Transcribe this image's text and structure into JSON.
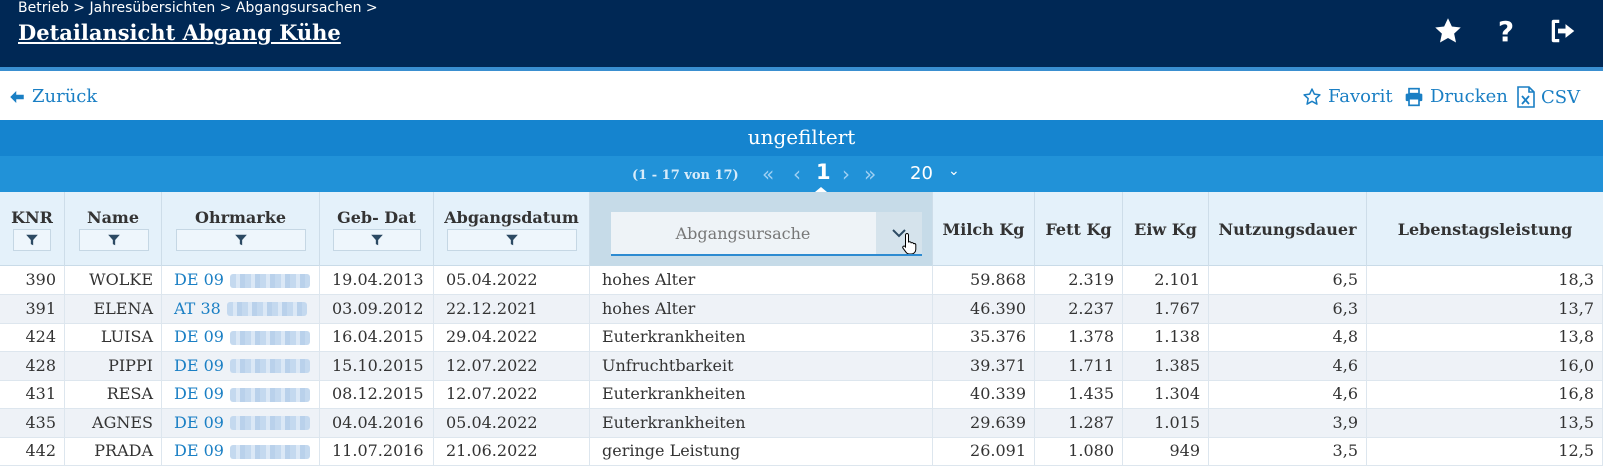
{
  "header": {
    "breadcrumb": "Betrieb > Jahresübersichten > Abgangsursachen >",
    "title": "Detailansicht Abgang Kühe",
    "help_label": "?"
  },
  "actions": {
    "back_label": "Zurück",
    "favorite_label": "Favorit",
    "print_label": "Drucken",
    "csv_label": "CSV"
  },
  "filter": {
    "status": "ungefiltert"
  },
  "pager": {
    "info": "(1 - 17 von 17)",
    "current_page": "1",
    "page_size": "20"
  },
  "table": {
    "columns": {
      "knr": "KNR",
      "name": "Name",
      "ohrmarke": "Ohrmarke",
      "gebdat": "Geb- Dat",
      "abgangsdatum": "Abgangsdatum",
      "abgangsursache_placeholder": "Abgangsursache",
      "milch": "Milch Kg",
      "fett": "Fett Kg",
      "eiw": "Eiw Kg",
      "nutzungsdauer": "Nutzungsdauer",
      "lebenstagsleistung": "Lebenstagsleistung"
    },
    "rows": [
      {
        "knr": "390",
        "name": "WOLKE",
        "ohrmarke": "DE 09",
        "gebdat": "19.04.2013",
        "abgangsdatum": "05.04.2022",
        "ursache": "hohes Alter",
        "milch": "59.868",
        "fett": "2.319",
        "eiw": "2.101",
        "nutzung": "6,5",
        "lebens": "18,3"
      },
      {
        "knr": "391",
        "name": "ELENA",
        "ohrmarke": "AT 38",
        "gebdat": "03.09.2012",
        "abgangsdatum": "22.12.2021",
        "ursache": "hohes Alter",
        "milch": "46.390",
        "fett": "2.237",
        "eiw": "1.767",
        "nutzung": "6,3",
        "lebens": "13,7"
      },
      {
        "knr": "424",
        "name": "LUISA",
        "ohrmarke": "DE 09",
        "gebdat": "16.04.2015",
        "abgangsdatum": "29.04.2022",
        "ursache": "Euterkrankheiten",
        "milch": "35.376",
        "fett": "1.378",
        "eiw": "1.138",
        "nutzung": "4,8",
        "lebens": "13,8"
      },
      {
        "knr": "428",
        "name": "PIPPI",
        "ohrmarke": "DE 09",
        "gebdat": "15.10.2015",
        "abgangsdatum": "12.07.2022",
        "ursache": "Unfruchtbarkeit",
        "milch": "39.371",
        "fett": "1.711",
        "eiw": "1.385",
        "nutzung": "4,6",
        "lebens": "16,0"
      },
      {
        "knr": "431",
        "name": "RESA",
        "ohrmarke": "DE 09",
        "gebdat": "08.12.2015",
        "abgangsdatum": "12.07.2022",
        "ursache": "Euterkrankheiten",
        "milch": "40.339",
        "fett": "1.435",
        "eiw": "1.304",
        "nutzung": "4,6",
        "lebens": "16,8"
      },
      {
        "knr": "435",
        "name": "AGNES",
        "ohrmarke": "DE 09",
        "gebdat": "04.04.2016",
        "abgangsdatum": "05.04.2022",
        "ursache": "Euterkrankheiten",
        "milch": "29.639",
        "fett": "1.287",
        "eiw": "1.015",
        "nutzung": "3,9",
        "lebens": "13,5"
      },
      {
        "knr": "442",
        "name": "PRADA",
        "ohrmarke": "DE 09",
        "gebdat": "11.07.2016",
        "abgangsdatum": "21.06.2022",
        "ursache": "geringe Leistung",
        "milch": "26.091",
        "fett": "1.080",
        "eiw": "949",
        "nutzung": "3,5",
        "lebens": "12,5"
      }
    ]
  },
  "colors": {
    "header_bg": "#002855",
    "accent": "#1a7fc4",
    "filter_bar": "#1584cf",
    "pager_bar": "#2192d8"
  }
}
